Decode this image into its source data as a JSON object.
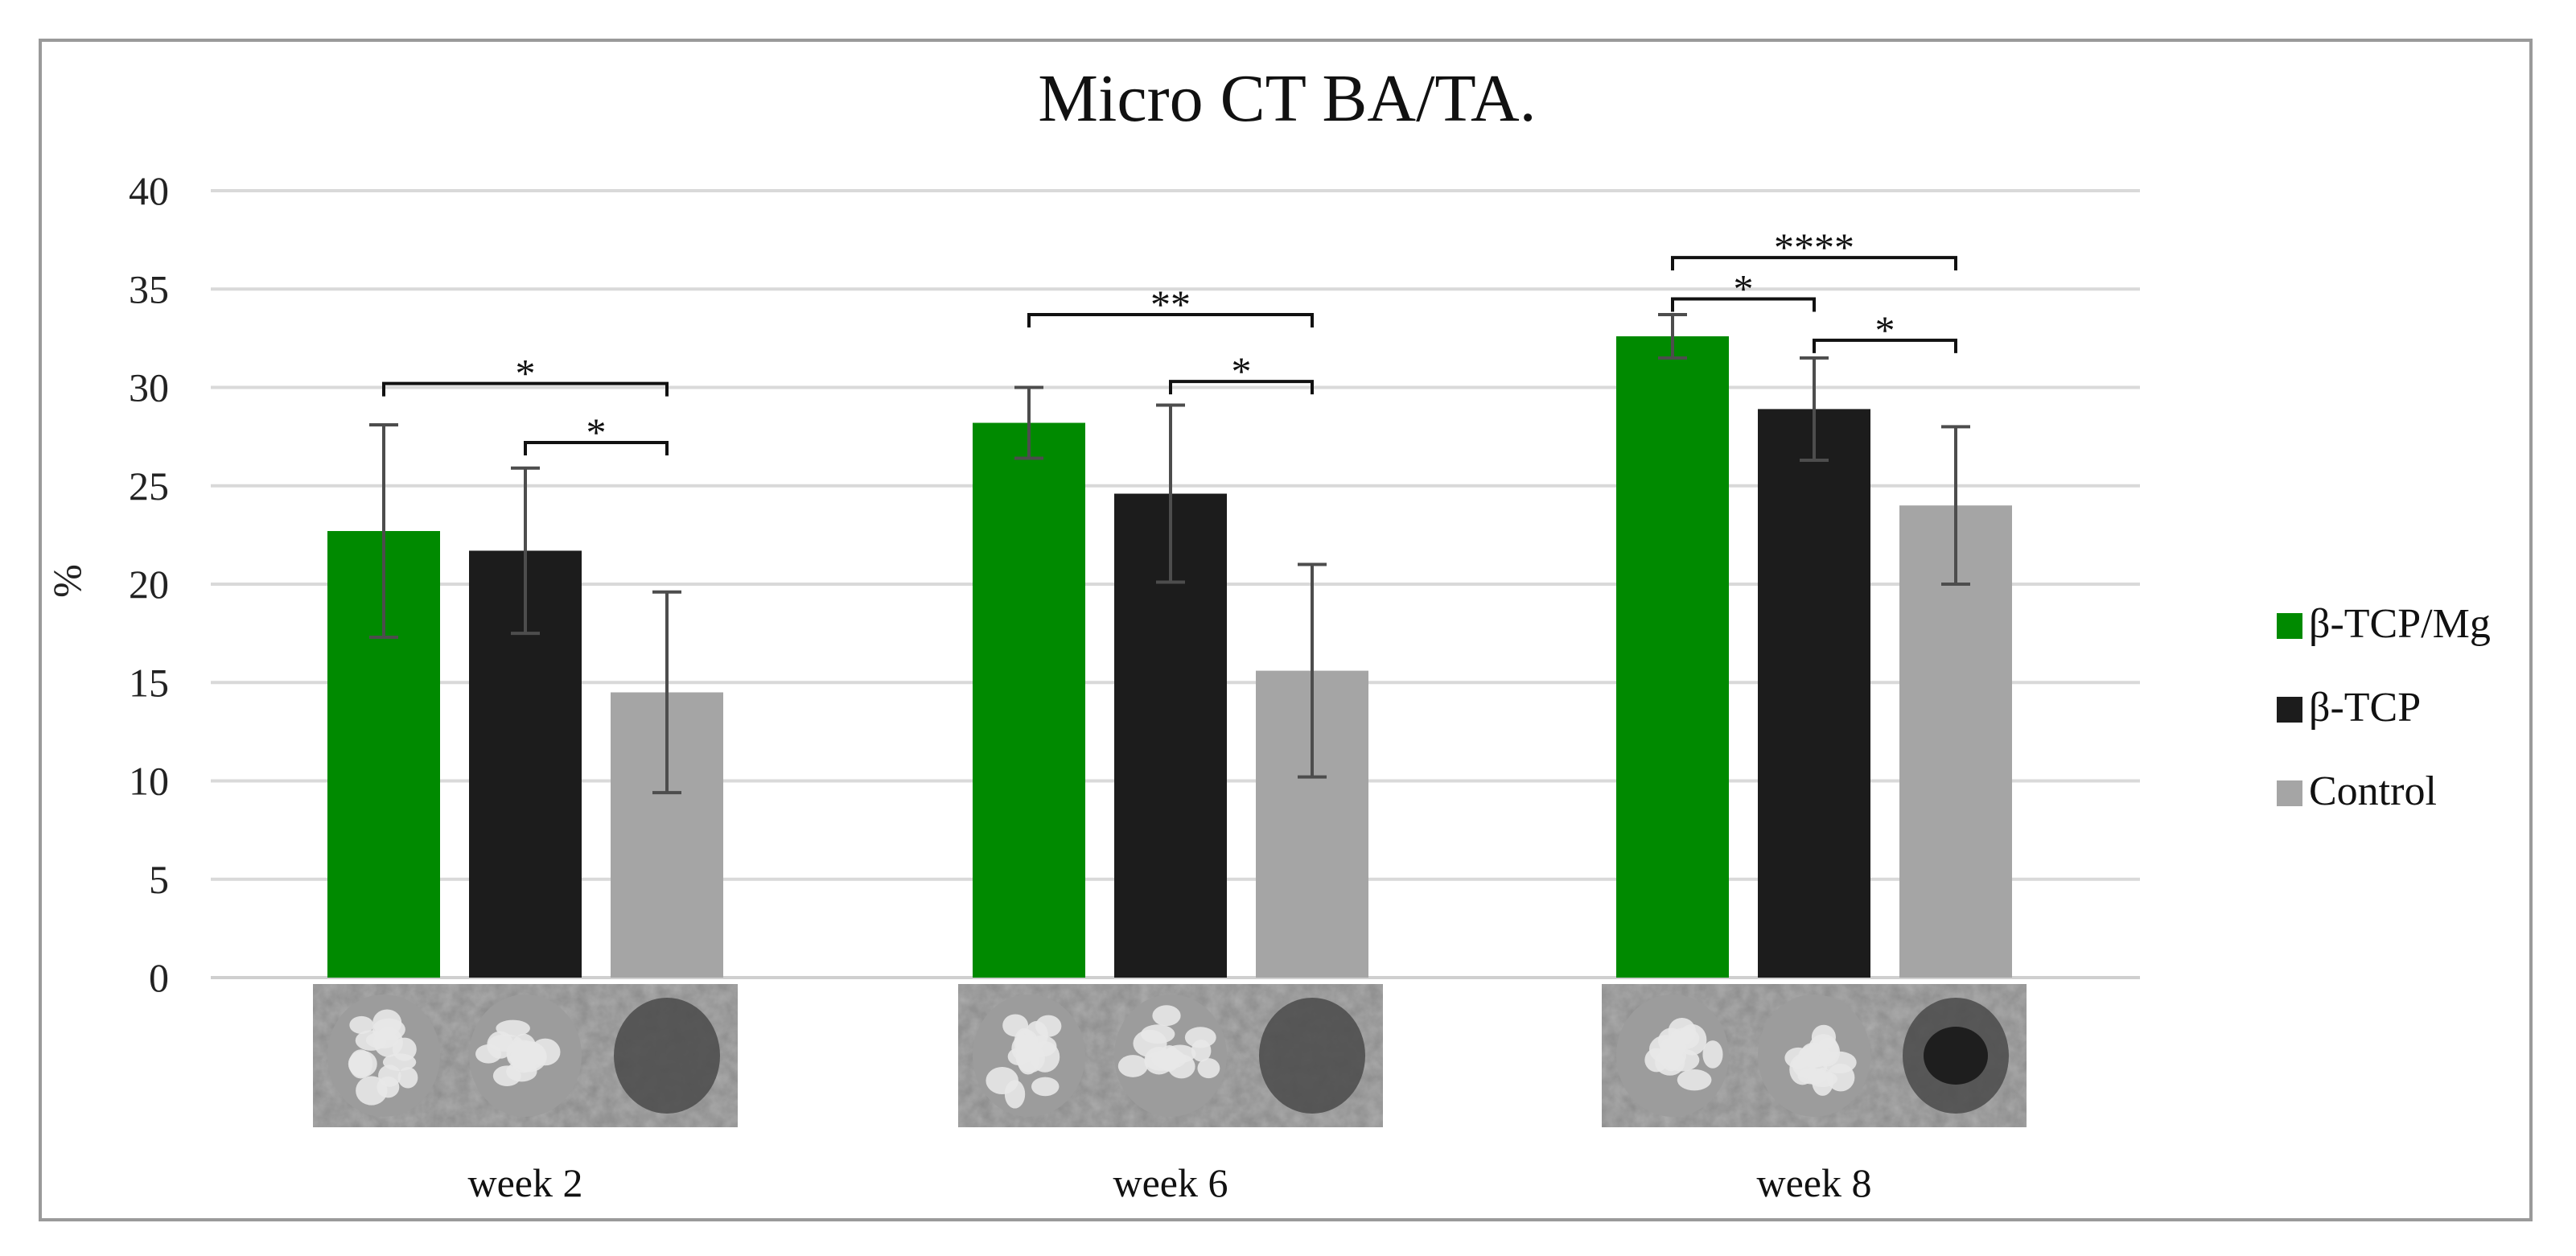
{
  "chart_data": {
    "type": "bar",
    "title": "Micro CT BA/TA.",
    "ylabel": "%",
    "xlabel": "",
    "ylim": [
      0,
      40
    ],
    "yticks": [
      0,
      5,
      10,
      15,
      20,
      25,
      30,
      35,
      40
    ],
    "grid": true,
    "legend_position": "right",
    "categories": [
      "week 2",
      "week 6",
      "week 8"
    ],
    "series": [
      {
        "name": "β-TCP/Mg",
        "color": "#008a00",
        "values": [
          22.7,
          28.2,
          32.6
        ],
        "errors": [
          5.4,
          1.8,
          1.1
        ]
      },
      {
        "name": "β-TCP",
        "color": "#1c1c1c",
        "values": [
          21.7,
          24.6,
          28.9
        ],
        "errors": [
          4.2,
          4.5,
          2.6
        ]
      },
      {
        "name": "Control",
        "color": "#a5a5a5",
        "values": [
          14.5,
          15.6,
          24.0
        ],
        "errors": [
          5.1,
          5.4,
          4.0
        ]
      }
    ],
    "significance": [
      {
        "group": 0,
        "from": 0,
        "to": 2,
        "label": "*",
        "y": 30.2
      },
      {
        "group": 0,
        "from": 1,
        "to": 2,
        "label": "*",
        "y": 27.2
      },
      {
        "group": 1,
        "from": 0,
        "to": 2,
        "label": "**",
        "y": 33.7
      },
      {
        "group": 1,
        "from": 1,
        "to": 2,
        "label": "*",
        "y": 30.3
      },
      {
        "group": 2,
        "from": 0,
        "to": 2,
        "label": "****",
        "y": 36.6
      },
      {
        "group": 2,
        "from": 0,
        "to": 1,
        "label": "*",
        "y": 34.5
      },
      {
        "group": 2,
        "from": 1,
        "to": 2,
        "label": "*",
        "y": 32.4
      }
    ],
    "thumbnails": [
      [
        "week 2 β-TCP/Mg micro-CT scan",
        "week 2 β-TCP micro-CT scan",
        "week 2 Control micro-CT scan"
      ],
      [
        "week 6 β-TCP/Mg micro-CT scan",
        "week 6 β-TCP micro-CT scan",
        "week 6 Control micro-CT scan"
      ],
      [
        "week 8 β-TCP/Mg micro-CT scan",
        "week 8 β-TCP micro-CT scan",
        "week 8 Control micro-CT scan"
      ]
    ]
  }
}
